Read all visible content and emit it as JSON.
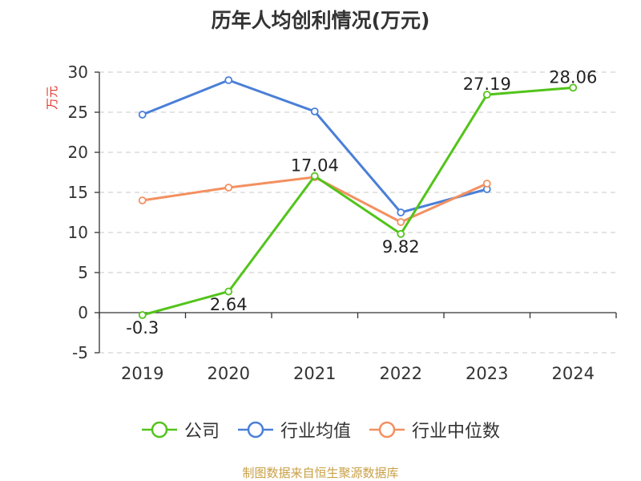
{
  "chart_data": {
    "type": "line",
    "title": "历年人均创利情况(万元)",
    "ylabel": "万元",
    "xlabel": "",
    "categories": [
      "2019",
      "2020",
      "2021",
      "2022",
      "2023",
      "2024"
    ],
    "ylim": [
      -5,
      30
    ],
    "yticks": [
      -5,
      0,
      5,
      10,
      15,
      20,
      25,
      30
    ],
    "grid": true,
    "legend_position": "bottom",
    "series": [
      {
        "name": "公司",
        "color": "#52c41a",
        "values": [
          -0.3,
          2.64,
          17.04,
          9.82,
          27.19,
          28.06
        ],
        "labels": [
          "-0.3",
          "2.64",
          "17.04",
          "9.82",
          "27.19",
          "28.06"
        ]
      },
      {
        "name": "行业均值",
        "color": "#4a7fd8",
        "values": [
          24.7,
          29.0,
          25.1,
          12.5,
          15.4,
          null
        ]
      },
      {
        "name": "行业中位数",
        "color": "#f39060",
        "values": [
          14.0,
          15.6,
          16.9,
          11.3,
          16.1,
          null
        ]
      }
    ]
  },
  "source": "制图数据来自恒生聚源数据库"
}
